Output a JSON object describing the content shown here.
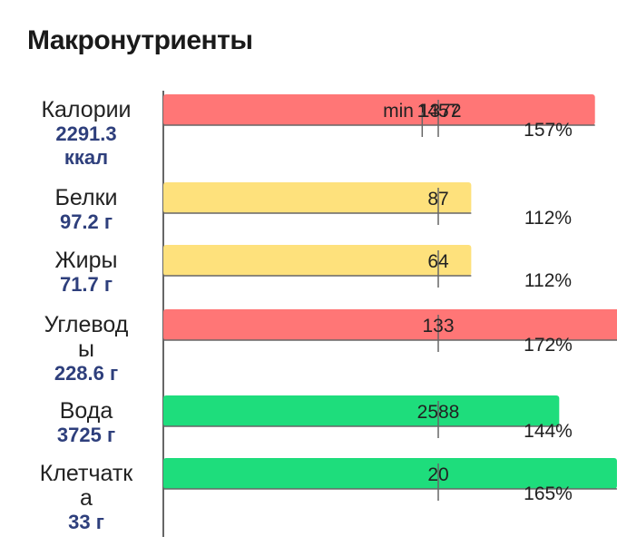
{
  "title": "Макронутриенты",
  "colors": {
    "red": "#ff7676",
    "yellow": "#fee17c",
    "green": "#1edd7c",
    "axis": "#666666",
    "value_text": "#2e3f7c"
  },
  "chart_data": {
    "type": "bar",
    "orientation": "horizontal",
    "rows": [
      {
        "name_lines": [
          "Калории"
        ],
        "value_lines": [
          "2291.3",
          "ккал"
        ],
        "norm": 1457,
        "min": 1372,
        "min_label": "min 1372",
        "norm_label": "1457",
        "percent": 157,
        "percent_label": "157%",
        "color": "red"
      },
      {
        "name_lines": [
          "Белки"
        ],
        "value_lines": [
          "97.2 г"
        ],
        "norm": 87,
        "norm_label": "87",
        "percent": 112,
        "percent_label": "112%",
        "color": "yellow"
      },
      {
        "name_lines": [
          "Жиры"
        ],
        "value_lines": [
          "71.7 г"
        ],
        "norm": 64,
        "norm_label": "64",
        "percent": 112,
        "percent_label": "112%",
        "color": "yellow"
      },
      {
        "name_lines": [
          "Углевод",
          "ы"
        ],
        "value_lines": [
          "228.6 г"
        ],
        "norm": 133,
        "norm_label": "133",
        "percent": 172,
        "percent_label": "172%",
        "color": "red"
      },
      {
        "name_lines": [
          "Вода"
        ],
        "value_lines": [
          "3725 г"
        ],
        "norm": 2588,
        "norm_label": "2588",
        "percent": 144,
        "percent_label": "144%",
        "color": "green"
      },
      {
        "name_lines": [
          "Клетчатк",
          "а"
        ],
        "value_lines": [
          "33 г"
        ],
        "norm": 20,
        "norm_label": "20",
        "percent": 165,
        "percent_label": "165%",
        "color": "green"
      }
    ]
  }
}
